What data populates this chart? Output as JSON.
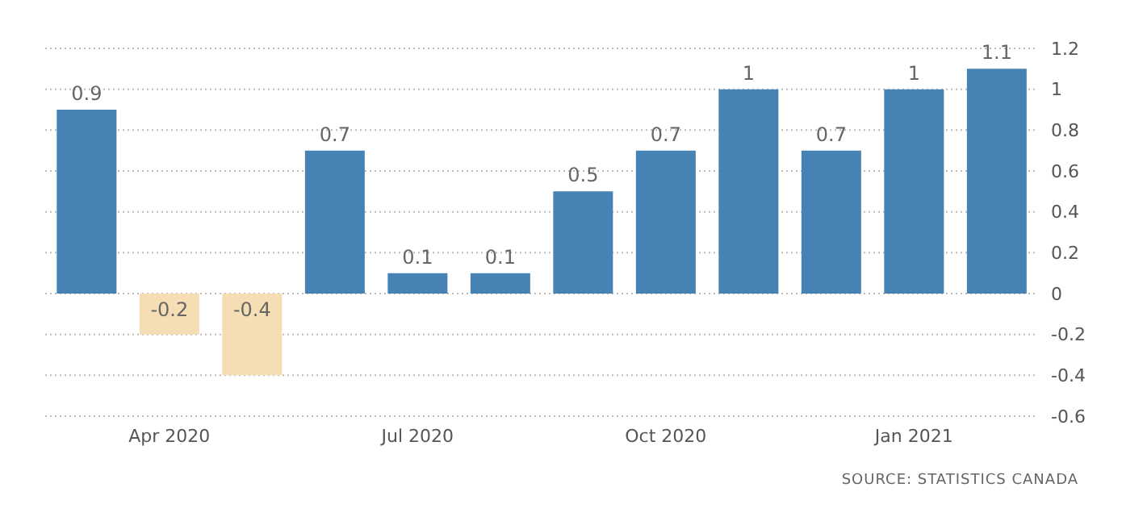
{
  "chart_data": {
    "type": "bar",
    "categories": [
      null,
      "Apr 2020",
      null,
      null,
      "Jul 2020",
      null,
      null,
      "Oct 2020",
      null,
      null,
      "Jan 2021",
      null
    ],
    "values": [
      0.9,
      -0.2,
      -0.4,
      0.7,
      0.1,
      0.1,
      0.5,
      0.7,
      1,
      0.7,
      1,
      1.1
    ],
    "colors": [
      "#4682b4",
      "#f5deb3",
      "#f5deb3",
      "#4682b4",
      "#4682b4",
      "#4682b4",
      "#4682b4",
      "#4682b4",
      "#4682b4",
      "#4682b4",
      "#4682b4",
      "#4682b4"
    ],
    "ylim": [
      -0.6,
      1.2
    ],
    "yticks": [
      -0.6,
      -0.4,
      -0.2,
      0,
      0.2,
      0.4,
      0.6,
      0.8,
      1,
      1.2
    ],
    "grid": "y",
    "data_labels": true,
    "annotations": [
      "SOURCE: STATISTICS CANADA"
    ]
  }
}
